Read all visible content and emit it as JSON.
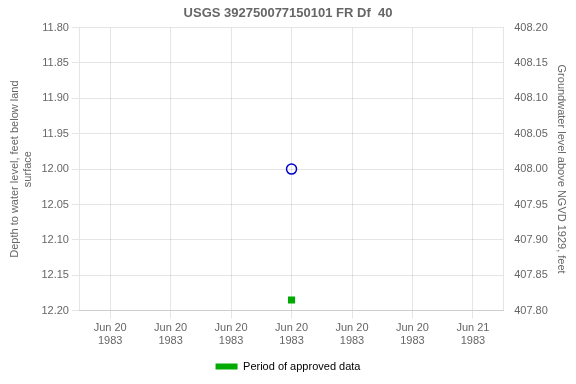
{
  "chart_data": {
    "type": "scatter",
    "title": "USGS 392750077150101 FR Df  40",
    "y_label": "Depth to water level, feet below land\nsurface",
    "y2_label": "Groundwater level above NGVD 1929, feet",
    "categories": [
      "Jun 20\n1983",
      "Jun 20\n1983",
      "Jun 20\n1983",
      "Jun 20\n1983",
      "Jun 20\n1983",
      "Jun 20\n1983",
      "Jun 21\n1983"
    ],
    "series": [
      {
        "values": [
          null,
          null,
          null,
          12.0,
          null,
          null,
          null
        ],
        "color": "#0000cc",
        "marker": "circle_open"
      },
      {
        "name": "Period of approved data",
        "values": [
          null,
          null,
          null,
          12.185,
          null,
          null,
          null
        ],
        "color": "#00aa00",
        "marker": "square"
      }
    ],
    "ylim": [
      12.2,
      11.8
    ],
    "yticks": [
      {
        "value": 11.8,
        "label": "11.80"
      },
      11.85,
      {
        "value": 11.9,
        "label": "11.90"
      },
      11.95,
      {
        "value": 12.0,
        "label": "12.00"
      },
      12.05,
      {
        "value": 12.1,
        "label": "12.10"
      },
      12.15,
      {
        "value": 12.2,
        "label": "12.20"
      }
    ],
    "y2lim": [
      407.8,
      408.2
    ],
    "y2ticks": [
      {
        "value": 408.2,
        "label": "408.20"
      },
      408.15,
      {
        "value": 408.1,
        "label": "408.10"
      },
      408.05,
      {
        "value": 408.0,
        "label": "408.00"
      },
      407.95,
      {
        "value": 407.9,
        "label": "407.90"
      },
      407.85,
      {
        "value": 407.8,
        "label": "407.80"
      }
    ],
    "grid": true,
    "legend": "bottom"
  }
}
